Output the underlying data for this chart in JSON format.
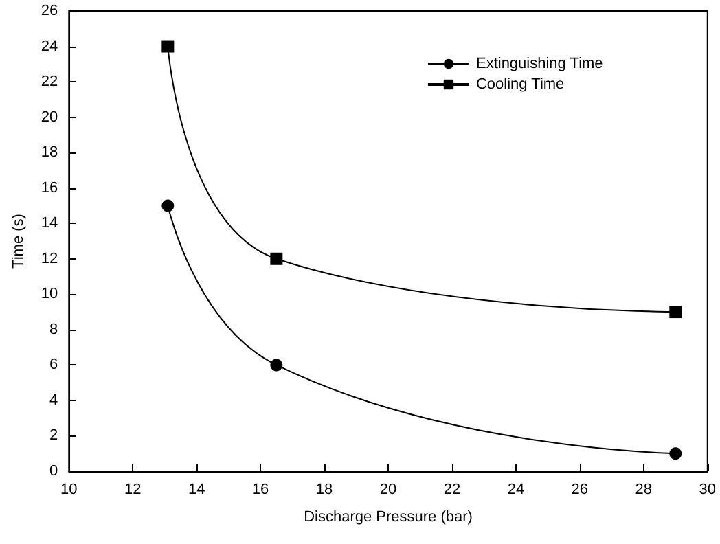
{
  "chart_data": {
    "type": "line",
    "xlabel": "Discharge Pressure (bar)",
    "ylabel": "Time (s)",
    "xlim": [
      10,
      30
    ],
    "xticks": [
      10,
      12,
      14,
      16,
      18,
      20,
      22,
      24,
      26,
      28,
      30
    ],
    "ylim": [
      0,
      26
    ],
    "yticks": [
      0,
      2,
      4,
      6,
      8,
      10,
      12,
      14,
      16,
      18,
      20,
      22,
      24,
      26
    ],
    "grid": false,
    "legend": "top right",
    "series": [
      {
        "name": "Extinguishing Time",
        "color": "#000000",
        "marker": "circle",
        "x": [
          13.1,
          16.5,
          29
        ],
        "values": [
          15,
          6,
          1
        ]
      },
      {
        "name": "Cooling Time",
        "color": "#000000",
        "marker": "square",
        "x": [
          13.1,
          16.5,
          29
        ],
        "values": [
          24,
          12,
          9
        ]
      }
    ]
  }
}
